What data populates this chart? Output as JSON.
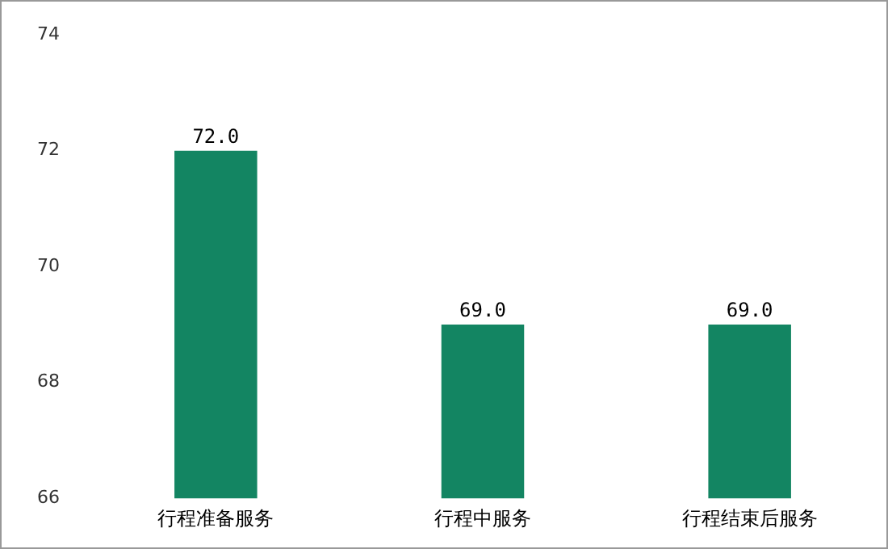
{
  "chart_data": {
    "type": "bar",
    "categories": [
      "行程准备服务",
      "行程中服务",
      "行程结束后服务"
    ],
    "values": [
      72,
      69,
      69
    ],
    "value_labels": [
      "72.0",
      "69.0",
      "69.0"
    ],
    "color": "#138562",
    "ylim": [
      66,
      74
    ],
    "yticks": [
      66,
      68,
      70,
      72,
      74
    ],
    "grid": false,
    "legend": false
  }
}
